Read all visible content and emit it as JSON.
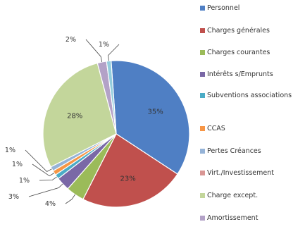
{
  "chart_data": {
    "type": "pie",
    "title": "",
    "start_angle_deg": -4,
    "slices": [
      {
        "label": "Personnel",
        "value": 35,
        "display": "35%",
        "color": "#4f7fc4",
        "label_pos": "inside"
      },
      {
        "label": "Charges générales",
        "value": 23,
        "display": "23%",
        "color": "#c0504d",
        "label_pos": "inside"
      },
      {
        "label": "Charges courantes",
        "value": 4,
        "display": "4%",
        "color": "#9bbb59",
        "label_pos": "outside"
      },
      {
        "label": "Intérêts s/Emprunts",
        "value": 3,
        "display": "3%",
        "color": "#7a68a6",
        "label_pos": "outside"
      },
      {
        "label": "Subventions associations",
        "value": 1,
        "display": "1%",
        "color": "#4bacc6",
        "label_pos": "outside"
      },
      {
        "label": "CCAS",
        "value": 1,
        "display": "1%",
        "color": "#f79646",
        "label_pos": "outside"
      },
      {
        "label": "Pertes Créances",
        "value": 1,
        "display": "1%",
        "color": "#95b3d7",
        "label_pos": "outside"
      },
      {
        "label": "Virt./Investissement",
        "value": 0,
        "display": "",
        "color": "#d99694",
        "label_pos": "none"
      },
      {
        "label": "Charge except.",
        "value": 28,
        "display": "28%",
        "color": "#c3d69b",
        "label_pos": "inside"
      },
      {
        "label": "Amortissement",
        "value": 2,
        "display": "2%",
        "color": "#b3a2c7",
        "label_pos": "outside"
      },
      {
        "label": "",
        "value": 1,
        "display": "1%",
        "color": "#93cddd",
        "label_pos": "outside"
      }
    ],
    "legend": {
      "position": "right",
      "entries": [
        "Personnel",
        "Charges générales",
        "Charges courantes",
        "Intérêts s/Emprunts",
        "Subventions associations",
        "CCAS",
        "Pertes Créances",
        "Virt./Investissement",
        "Charge except.",
        "Amortissement"
      ]
    }
  }
}
